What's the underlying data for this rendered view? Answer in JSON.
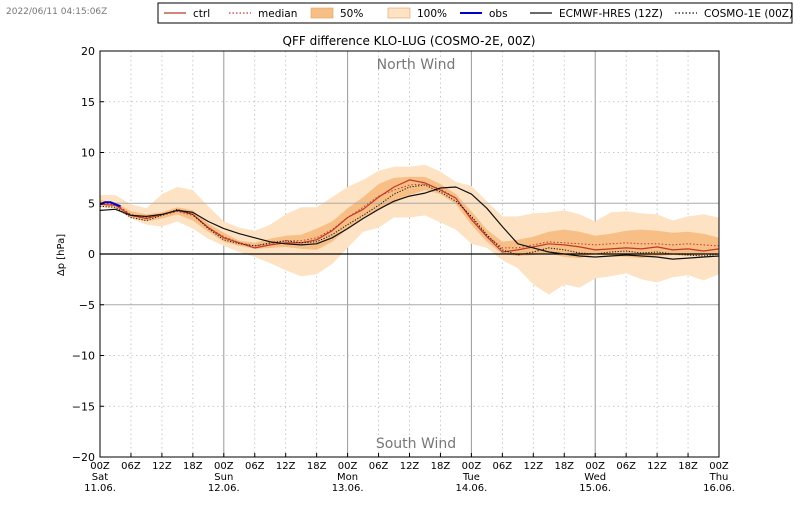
{
  "timestamp": "2022/06/11 04:15:06Z",
  "chart_data": {
    "type": "line",
    "title": "QFF difference KLO-LUG (COSMO-2E, 00Z)",
    "ylabel": "Δp [hPa]",
    "ylim": [
      -20,
      20
    ],
    "xlim_hours": [
      0,
      120
    ],
    "yticks": [
      20,
      15,
      10,
      5,
      0,
      -5,
      -10,
      -15,
      -20
    ],
    "ytick_labels": [
      "20",
      "15",
      "10",
      "5",
      "0",
      "−5",
      "−10",
      "−15",
      "−20"
    ],
    "annotations": {
      "top": "North Wind",
      "bottom": "South Wind"
    },
    "reference_lines": [
      5,
      0,
      -5
    ],
    "xticks": [
      {
        "h": 0,
        "label": "00Z",
        "day": "Sat",
        "date": "11.06."
      },
      {
        "h": 6,
        "label": "06Z"
      },
      {
        "h": 12,
        "label": "12Z"
      },
      {
        "h": 18,
        "label": "18Z"
      },
      {
        "h": 24,
        "label": "00Z",
        "day": "Sun",
        "date": "12.06."
      },
      {
        "h": 30,
        "label": "06Z"
      },
      {
        "h": 36,
        "label": "12Z"
      },
      {
        "h": 42,
        "label": "18Z"
      },
      {
        "h": 48,
        "label": "00Z",
        "day": "Mon",
        "date": "13.06."
      },
      {
        "h": 54,
        "label": "06Z"
      },
      {
        "h": 60,
        "label": "12Z"
      },
      {
        "h": 66,
        "label": "18Z"
      },
      {
        "h": 72,
        "label": "00Z",
        "day": "Tue",
        "date": "14.06."
      },
      {
        "h": 78,
        "label": "06Z"
      },
      {
        "h": 84,
        "label": "12Z"
      },
      {
        "h": 90,
        "label": "18Z"
      },
      {
        "h": 96,
        "label": "00Z",
        "day": "Wed",
        "date": "15.06."
      },
      {
        "h": 102,
        "label": "06Z"
      },
      {
        "h": 108,
        "label": "12Z"
      },
      {
        "h": 114,
        "label": "18Z"
      },
      {
        "h": 120,
        "label": "00Z",
        "day": "Thu",
        "date": "16.06."
      }
    ],
    "legend": {
      "position": "top",
      "entries": [
        {
          "key": "ctrl",
          "label": "ctrl",
          "style": "line",
          "color": "#c0392b"
        },
        {
          "key": "median",
          "label": "median",
          "style": "dotted",
          "color": "#c0392b"
        },
        {
          "key": "p50",
          "label": "50%",
          "style": "fill",
          "color": "#f7bf86"
        },
        {
          "key": "p100",
          "label": "100%",
          "style": "fill",
          "color": "#fde2c4"
        },
        {
          "key": "obs",
          "label": "obs",
          "style": "line",
          "color": "#0000cc"
        },
        {
          "key": "ecmwf",
          "label": "ECMWF-HRES (12Z)",
          "style": "line",
          "color": "#111111"
        },
        {
          "key": "cosmo1e",
          "label": "COSMO-1E (00Z)",
          "style": "dotted",
          "color": "#111111"
        }
      ]
    },
    "colors": {
      "band100": "#fde2c4",
      "band50": "#f7bf86",
      "ctrl": "#c0392b",
      "median": "#c0392b",
      "obs": "#0000cc",
      "ecmwf": "#111111",
      "cosmo1e": "#111111"
    },
    "x_hours": [
      0,
      3,
      6,
      9,
      12,
      15,
      18,
      21,
      24,
      27,
      30,
      33,
      36,
      39,
      42,
      45,
      48,
      51,
      54,
      57,
      60,
      63,
      66,
      69,
      72,
      75,
      78,
      81,
      84,
      87,
      90,
      93,
      96,
      99,
      102,
      105,
      108,
      111,
      114,
      117,
      120
    ],
    "series": [
      {
        "name": "100% min",
        "values": [
          4.6,
          4.4,
          3.5,
          2.9,
          2.7,
          3.2,
          2.5,
          1.5,
          0.8,
          0.2,
          -0.3,
          -0.9,
          -1.6,
          -2.2,
          -2.0,
          -1.0,
          0.6,
          2.2,
          2.6,
          3.6,
          3.6,
          3.8,
          3.1,
          2.4,
          1.0,
          0.6,
          -0.6,
          -1.4,
          -3.0,
          -4.0,
          -3.0,
          -3.3,
          -2.4,
          -2.2,
          -1.9,
          -2.5,
          -2.8,
          -2.3,
          -2.1,
          -2.6,
          -2.0
        ]
      },
      {
        "name": "50% low",
        "values": [
          4.8,
          4.6,
          3.6,
          3.2,
          3.5,
          3.9,
          3.3,
          2.2,
          1.2,
          0.8,
          0.5,
          0.6,
          0.7,
          0.5,
          0.4,
          1.2,
          2.5,
          3.6,
          4.5,
          5.0,
          5.8,
          6.3,
          5.9,
          4.9,
          2.9,
          1.2,
          0.0,
          -0.2,
          -0.1,
          0.1,
          -0.3,
          -0.4,
          0.0,
          -0.2,
          -0.3,
          -0.4,
          -0.2,
          -0.1,
          -0.2,
          -0.1,
          0.1
        ]
      },
      {
        "name": "50% high",
        "values": [
          5.3,
          5.1,
          4.2,
          3.9,
          4.1,
          4.6,
          4.3,
          3.0,
          2.1,
          1.3,
          1.1,
          1.5,
          1.8,
          1.9,
          2.5,
          3.2,
          4.5,
          5.6,
          6.9,
          7.5,
          7.6,
          7.6,
          6.9,
          5.9,
          4.2,
          2.4,
          1.2,
          1.4,
          1.7,
          2.2,
          2.4,
          2.2,
          1.8,
          2.0,
          2.3,
          2.4,
          2.3,
          2.1,
          2.2,
          2.0,
          1.6
        ]
      },
      {
        "name": "100% max",
        "values": [
          5.8,
          5.8,
          4.9,
          4.5,
          5.9,
          6.6,
          6.3,
          4.7,
          3.2,
          2.6,
          2.3,
          2.9,
          3.9,
          4.6,
          4.6,
          5.6,
          6.6,
          7.3,
          8.2,
          8.6,
          8.6,
          8.8,
          8.1,
          7.1,
          6.7,
          5.2,
          3.7,
          3.7,
          4.0,
          4.1,
          4.3,
          3.9,
          3.2,
          4.1,
          4.2,
          4.0,
          3.9,
          3.3,
          3.7,
          3.9,
          3.6
        ]
      },
      {
        "name": "ctrl",
        "values": [
          4.9,
          4.8,
          3.8,
          3.5,
          3.9,
          4.3,
          3.9,
          2.6,
          1.6,
          1.1,
          0.6,
          0.9,
          1.1,
          1.1,
          1.4,
          2.3,
          3.6,
          4.4,
          5.6,
          6.6,
          7.3,
          7.0,
          6.3,
          5.5,
          3.4,
          1.7,
          0.2,
          0.4,
          0.7,
          1.0,
          0.9,
          0.7,
          0.4,
          0.5,
          0.6,
          0.5,
          0.7,
          0.4,
          0.5,
          0.3,
          0.5
        ]
      },
      {
        "name": "median",
        "values": [
          5.0,
          4.9,
          3.9,
          3.6,
          3.8,
          4.2,
          3.8,
          2.6,
          1.7,
          1.1,
          0.8,
          1.0,
          1.3,
          1.3,
          1.6,
          2.4,
          3.6,
          4.6,
          5.7,
          6.3,
          6.8,
          6.9,
          6.4,
          5.5,
          3.6,
          1.8,
          0.6,
          0.6,
          0.9,
          1.2,
          1.1,
          1.0,
          0.9,
          1.0,
          1.1,
          1.0,
          1.0,
          0.9,
          1.0,
          0.9,
          0.8
        ]
      },
      {
        "name": "ECMWF-HRES (12Z)",
        "values": [
          4.3,
          4.4,
          3.8,
          3.7,
          3.9,
          4.3,
          4.1,
          3.2,
          2.5,
          2.0,
          1.6,
          1.2,
          1.0,
          0.9,
          1.0,
          1.6,
          2.5,
          3.5,
          4.4,
          5.2,
          5.7,
          6.0,
          6.5,
          6.6,
          5.9,
          4.5,
          2.7,
          1.0,
          0.6,
          0.2,
          0.0,
          -0.2,
          -0.3,
          -0.2,
          -0.1,
          -0.2,
          -0.3,
          -0.5,
          -0.4,
          -0.3,
          -0.2
        ]
      },
      {
        "name": "COSMO-1E (00Z)",
        "values": [
          4.7,
          4.6,
          3.6,
          3.3,
          3.8,
          4.4,
          3.9,
          2.5,
          1.4,
          1.0,
          0.8,
          1.1,
          1.3,
          1.1,
          1.2,
          1.9,
          2.9,
          3.8,
          4.8,
          5.9,
          6.6,
          6.8,
          6.1,
          5.2,
          3.7,
          1.9,
          0.4,
          -0.1,
          0.2,
          0.6,
          0.4,
          0.1,
          0.0,
          0.2,
          0.3,
          0.1,
          0.2,
          0.0,
          -0.1,
          -0.2,
          0.0
        ]
      },
      {
        "name": "obs",
        "x_hours": [
          0,
          1,
          2,
          3,
          4
        ],
        "values": [
          4.9,
          5.1,
          5.1,
          4.9,
          4.7
        ]
      }
    ]
  }
}
